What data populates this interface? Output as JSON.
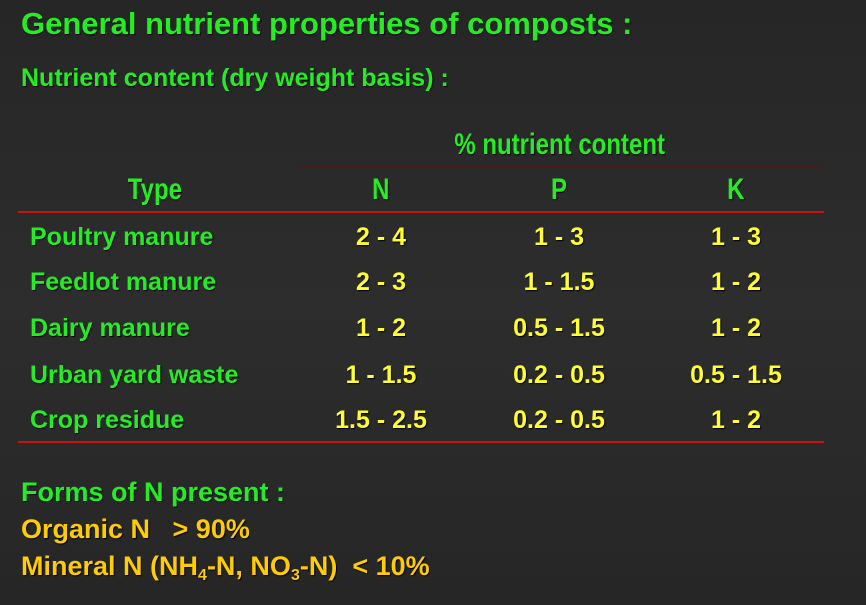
{
  "title": "General nutrient properties of composts :",
  "subtitle": "Nutrient content (dry weight basis) :",
  "table": {
    "group_header": "% nutrient content",
    "headers": [
      "Type",
      "N",
      "P",
      "K"
    ],
    "rows": [
      [
        "Poultry manure",
        "2 - 4",
        "1 - 3",
        "1 - 3"
      ],
      [
        "Feedlot manure",
        "2 - 3",
        "1 - 1.5",
        "1 - 2"
      ],
      [
        "Dairy manure",
        "1 - 2",
        "0.5 - 1.5",
        "1 - 2"
      ],
      [
        "Urban yard waste",
        "1 - 1.5",
        "0.2 - 0.5",
        "0.5 - 1.5"
      ],
      [
        "Crop residue",
        "1.5 - 2.5",
        "0.2 - 0.5",
        "1 - 2"
      ]
    ]
  },
  "forms": {
    "heading": "Forms of N present :",
    "organic": "Organic N   > 90%",
    "mineral_parts": [
      "Mineral N (NH",
      "4",
      "-N, NO",
      "3",
      "-N)  < 10%"
    ]
  },
  "colors": {
    "heading": "#22ee22",
    "values": "#ffff2e",
    "forms": "#ffcc00",
    "rule": "#cc1111",
    "background": "#2a2a2a"
  }
}
